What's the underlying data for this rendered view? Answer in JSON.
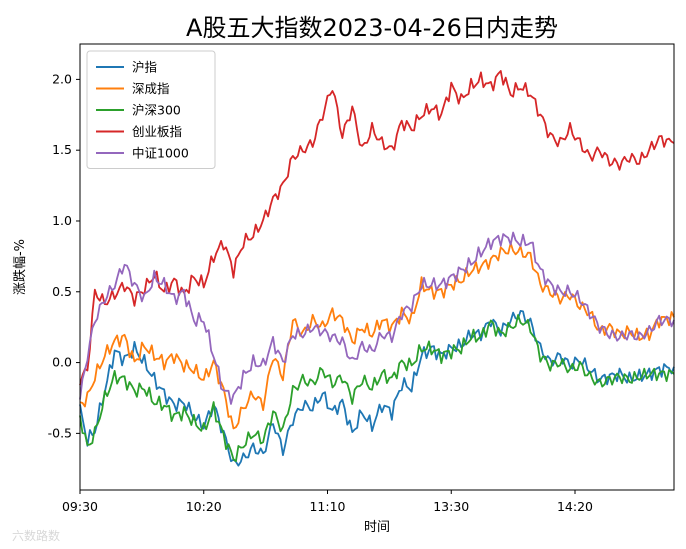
{
  "chart_data": {
    "type": "line",
    "title": "A股五大指数2023-04-26日内走势",
    "xlabel": "时间",
    "ylabel": "涨跌幅-%",
    "ylim": [
      -0.9,
      2.25
    ],
    "yticks": [
      -0.5,
      0.0,
      0.5,
      1.0,
      1.5,
      2.0
    ],
    "ytick_labels": [
      "-0.5",
      "0.0",
      "0.5",
      "1.0",
      "1.5",
      "2.0"
    ],
    "x_tick_labels": [
      "09:30",
      "10:20",
      "11:10",
      "13:30",
      "14:20"
    ],
    "x_tick_indices": [
      0,
      50,
      100,
      150,
      200
    ],
    "x_count": 241,
    "grid": false,
    "legend_position": "upper-left",
    "watermark": "六数路数",
    "series": [
      {
        "name": "沪指",
        "color": "#1f77b4",
        "anchors": [
          [
            0,
            -0.33
          ],
          [
            3,
            -0.55
          ],
          [
            6,
            -0.48
          ],
          [
            10,
            -0.2
          ],
          [
            14,
            0.08
          ],
          [
            18,
            0.02
          ],
          [
            22,
            0.1
          ],
          [
            26,
            0.0
          ],
          [
            30,
            -0.12
          ],
          [
            34,
            -0.22
          ],
          [
            38,
            -0.3
          ],
          [
            42,
            -0.28
          ],
          [
            46,
            -0.38
          ],
          [
            50,
            -0.45
          ],
          [
            54,
            -0.3
          ],
          [
            58,
            -0.5
          ],
          [
            62,
            -0.72
          ],
          [
            66,
            -0.68
          ],
          [
            70,
            -0.6
          ],
          [
            74,
            -0.65
          ],
          [
            78,
            -0.42
          ],
          [
            82,
            -0.62
          ],
          [
            86,
            -0.4
          ],
          [
            90,
            -0.3
          ],
          [
            94,
            -0.32
          ],
          [
            98,
            -0.22
          ],
          [
            102,
            -0.35
          ],
          [
            106,
            -0.28
          ],
          [
            110,
            -0.5
          ],
          [
            114,
            -0.35
          ],
          [
            118,
            -0.45
          ],
          [
            122,
            -0.3
          ],
          [
            126,
            -0.35
          ],
          [
            130,
            -0.15
          ],
          [
            134,
            -0.18
          ],
          [
            138,
            0.05
          ],
          [
            142,
            0.1
          ],
          [
            146,
            0.05
          ],
          [
            150,
            0.1
          ],
          [
            154,
            0.12
          ],
          [
            158,
            0.2
          ],
          [
            162,
            0.2
          ],
          [
            166,
            0.3
          ],
          [
            170,
            0.22
          ],
          [
            174,
            0.3
          ],
          [
            178,
            0.35
          ],
          [
            182,
            0.28
          ],
          [
            186,
            0.1
          ],
          [
            190,
            0.0
          ],
          [
            194,
            0.05
          ],
          [
            198,
            -0.02
          ],
          [
            202,
            0.02
          ],
          [
            206,
            -0.05
          ],
          [
            210,
            -0.12
          ],
          [
            214,
            -0.1
          ],
          [
            218,
            -0.08
          ],
          [
            222,
            -0.12
          ],
          [
            226,
            -0.1
          ],
          [
            230,
            -0.08
          ],
          [
            234,
            -0.05
          ],
          [
            240,
            -0.03
          ]
        ]
      },
      {
        "name": "深成指",
        "color": "#ff7f0e",
        "anchors": [
          [
            0,
            -0.3
          ],
          [
            3,
            -0.25
          ],
          [
            6,
            -0.1
          ],
          [
            10,
            0.05
          ],
          [
            14,
            0.15
          ],
          [
            18,
            0.18
          ],
          [
            22,
            0.0
          ],
          [
            26,
            0.12
          ],
          [
            30,
            0.05
          ],
          [
            34,
            0.0
          ],
          [
            38,
            0.05
          ],
          [
            42,
            -0.02
          ],
          [
            46,
            -0.05
          ],
          [
            50,
            -0.12
          ],
          [
            54,
            0.0
          ],
          [
            58,
            -0.2
          ],
          [
            62,
            -0.48
          ],
          [
            66,
            -0.32
          ],
          [
            70,
            -0.22
          ],
          [
            74,
            -0.3
          ],
          [
            78,
            0.05
          ],
          [
            82,
            -0.1
          ],
          [
            86,
            0.3
          ],
          [
            90,
            0.2
          ],
          [
            94,
            0.3
          ],
          [
            98,
            0.25
          ],
          [
            102,
            0.35
          ],
          [
            106,
            0.3
          ],
          [
            110,
            0.15
          ],
          [
            114,
            0.25
          ],
          [
            118,
            0.2
          ],
          [
            122,
            0.3
          ],
          [
            126,
            0.25
          ],
          [
            130,
            0.35
          ],
          [
            134,
            0.3
          ],
          [
            138,
            0.55
          ],
          [
            142,
            0.5
          ],
          [
            146,
            0.5
          ],
          [
            150,
            0.55
          ],
          [
            154,
            0.58
          ],
          [
            158,
            0.65
          ],
          [
            162,
            0.68
          ],
          [
            166,
            0.72
          ],
          [
            170,
            0.78
          ],
          [
            174,
            0.8
          ],
          [
            178,
            0.78
          ],
          [
            182,
            0.75
          ],
          [
            186,
            0.55
          ],
          [
            190,
            0.5
          ],
          [
            194,
            0.45
          ],
          [
            198,
            0.48
          ],
          [
            202,
            0.4
          ],
          [
            206,
            0.35
          ],
          [
            210,
            0.22
          ],
          [
            214,
            0.25
          ],
          [
            218,
            0.2
          ],
          [
            222,
            0.22
          ],
          [
            226,
            0.18
          ],
          [
            230,
            0.2
          ],
          [
            234,
            0.3
          ],
          [
            240,
            0.32
          ]
        ]
      },
      {
        "name": "沪深300",
        "color": "#2ca02c",
        "anchors": [
          [
            0,
            -0.38
          ],
          [
            3,
            -0.6
          ],
          [
            6,
            -0.5
          ],
          [
            10,
            -0.25
          ],
          [
            14,
            -0.1
          ],
          [
            18,
            -0.12
          ],
          [
            22,
            -0.2
          ],
          [
            26,
            -0.18
          ],
          [
            30,
            -0.28
          ],
          [
            34,
            -0.3
          ],
          [
            38,
            -0.38
          ],
          [
            42,
            -0.35
          ],
          [
            46,
            -0.42
          ],
          [
            50,
            -0.48
          ],
          [
            54,
            -0.32
          ],
          [
            58,
            -0.52
          ],
          [
            62,
            -0.68
          ],
          [
            66,
            -0.58
          ],
          [
            70,
            -0.5
          ],
          [
            74,
            -0.55
          ],
          [
            78,
            -0.35
          ],
          [
            82,
            -0.48
          ],
          [
            86,
            -0.2
          ],
          [
            90,
            -0.12
          ],
          [
            94,
            -0.15
          ],
          [
            98,
            -0.05
          ],
          [
            102,
            -0.15
          ],
          [
            106,
            -0.1
          ],
          [
            110,
            -0.25
          ],
          [
            114,
            -0.12
          ],
          [
            118,
            -0.18
          ],
          [
            122,
            -0.08
          ],
          [
            126,
            -0.12
          ],
          [
            130,
            0.0
          ],
          [
            134,
            -0.02
          ],
          [
            138,
            0.1
          ],
          [
            142,
            0.1
          ],
          [
            146,
            0.05
          ],
          [
            150,
            0.08
          ],
          [
            154,
            0.1
          ],
          [
            158,
            0.18
          ],
          [
            162,
            0.18
          ],
          [
            166,
            0.28
          ],
          [
            170,
            0.2
          ],
          [
            174,
            0.25
          ],
          [
            178,
            0.3
          ],
          [
            182,
            0.25
          ],
          [
            186,
            0.05
          ],
          [
            190,
            -0.02
          ],
          [
            194,
            0.0
          ],
          [
            198,
            -0.05
          ],
          [
            202,
            -0.02
          ],
          [
            206,
            -0.1
          ],
          [
            210,
            -0.15
          ],
          [
            214,
            -0.12
          ],
          [
            218,
            -0.1
          ],
          [
            222,
            -0.12
          ],
          [
            226,
            -0.1
          ],
          [
            230,
            -0.08
          ],
          [
            234,
            -0.08
          ],
          [
            240,
            -0.08
          ]
        ]
      },
      {
        "name": "创业板指",
        "color": "#d62728",
        "anchors": [
          [
            0,
            -0.12
          ],
          [
            3,
            -0.05
          ],
          [
            6,
            0.5
          ],
          [
            10,
            0.42
          ],
          [
            14,
            0.48
          ],
          [
            18,
            0.55
          ],
          [
            22,
            0.45
          ],
          [
            26,
            0.52
          ],
          [
            30,
            0.62
          ],
          [
            34,
            0.5
          ],
          [
            38,
            0.58
          ],
          [
            42,
            0.48
          ],
          [
            46,
            0.6
          ],
          [
            50,
            0.55
          ],
          [
            54,
            0.75
          ],
          [
            58,
            0.85
          ],
          [
            62,
            0.65
          ],
          [
            66,
            0.85
          ],
          [
            70,
            0.9
          ],
          [
            74,
            1.0
          ],
          [
            78,
            1.15
          ],
          [
            82,
            1.25
          ],
          [
            86,
            1.45
          ],
          [
            90,
            1.5
          ],
          [
            94,
            1.55
          ],
          [
            98,
            1.75
          ],
          [
            102,
            1.95
          ],
          [
            106,
            1.6
          ],
          [
            110,
            1.8
          ],
          [
            114,
            1.5
          ],
          [
            118,
            1.65
          ],
          [
            122,
            1.55
          ],
          [
            126,
            1.5
          ],
          [
            130,
            1.7
          ],
          [
            134,
            1.65
          ],
          [
            138,
            1.75
          ],
          [
            142,
            1.8
          ],
          [
            146,
            1.75
          ],
          [
            150,
            1.95
          ],
          [
            154,
            1.85
          ],
          [
            158,
            1.95
          ],
          [
            162,
            2.0
          ],
          [
            166,
            1.95
          ],
          [
            170,
            2.05
          ],
          [
            174,
            1.9
          ],
          [
            178,
            1.95
          ],
          [
            182,
            1.9
          ],
          [
            186,
            1.75
          ],
          [
            190,
            1.6
          ],
          [
            194,
            1.55
          ],
          [
            198,
            1.65
          ],
          [
            202,
            1.55
          ],
          [
            206,
            1.45
          ],
          [
            210,
            1.5
          ],
          [
            214,
            1.42
          ],
          [
            218,
            1.4
          ],
          [
            222,
            1.45
          ],
          [
            226,
            1.42
          ],
          [
            230,
            1.5
          ],
          [
            234,
            1.58
          ],
          [
            240,
            1.55
          ]
        ]
      },
      {
        "name": "中证1000",
        "color": "#9467bd",
        "anchors": [
          [
            0,
            -0.25
          ],
          [
            3,
            0.05
          ],
          [
            6,
            0.3
          ],
          [
            10,
            0.45
          ],
          [
            14,
            0.55
          ],
          [
            18,
            0.7
          ],
          [
            22,
            0.55
          ],
          [
            26,
            0.45
          ],
          [
            30,
            0.6
          ],
          [
            34,
            0.55
          ],
          [
            38,
            0.45
          ],
          [
            42,
            0.5
          ],
          [
            46,
            0.3
          ],
          [
            50,
            0.3
          ],
          [
            54,
            0.05
          ],
          [
            58,
            -0.2
          ],
          [
            62,
            -0.25
          ],
          [
            66,
            -0.1
          ],
          [
            70,
            0.0
          ],
          [
            74,
            -0.02
          ],
          [
            78,
            0.15
          ],
          [
            82,
            0.0
          ],
          [
            86,
            0.2
          ],
          [
            90,
            0.2
          ],
          [
            94,
            0.25
          ],
          [
            98,
            0.22
          ],
          [
            102,
            0.18
          ],
          [
            106,
            0.15
          ],
          [
            110,
            0.0
          ],
          [
            114,
            0.12
          ],
          [
            118,
            0.08
          ],
          [
            122,
            0.2
          ],
          [
            126,
            0.18
          ],
          [
            130,
            0.35
          ],
          [
            134,
            0.4
          ],
          [
            138,
            0.55
          ],
          [
            142,
            0.55
          ],
          [
            146,
            0.55
          ],
          [
            150,
            0.6
          ],
          [
            154,
            0.65
          ],
          [
            158,
            0.7
          ],
          [
            162,
            0.78
          ],
          [
            166,
            0.85
          ],
          [
            170,
            0.88
          ],
          [
            174,
            0.88
          ],
          [
            178,
            0.85
          ],
          [
            182,
            0.85
          ],
          [
            186,
            0.65
          ],
          [
            190,
            0.55
          ],
          [
            194,
            0.5
          ],
          [
            198,
            0.5
          ],
          [
            202,
            0.45
          ],
          [
            206,
            0.35
          ],
          [
            210,
            0.25
          ],
          [
            214,
            0.2
          ],
          [
            218,
            0.18
          ],
          [
            222,
            0.2
          ],
          [
            226,
            0.18
          ],
          [
            230,
            0.22
          ],
          [
            234,
            0.3
          ],
          [
            240,
            0.3
          ]
        ]
      }
    ]
  }
}
